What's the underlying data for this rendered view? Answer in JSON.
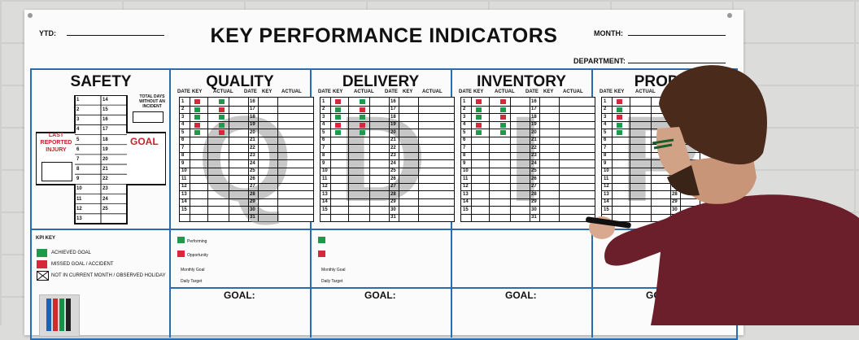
{
  "title": "KEY PERFORMANCE INDICATORS",
  "header": {
    "ytd": "YTD:",
    "month": "MONTH:",
    "department": "DEPARTMENT:"
  },
  "safety": {
    "title": "SAFETY",
    "total_days": "TOTAL DAYS WITHOUT AN INCIDENT",
    "last_injury": "LAST REPORTED INJURY",
    "goal": "GOAL",
    "left_nums": [
      "1",
      "2",
      "3",
      "4",
      "5",
      "6",
      "7",
      "8",
      "9",
      "10",
      "11",
      "12",
      "13"
    ],
    "right_nums": [
      "14",
      "15",
      "16",
      "17",
      "18",
      "19",
      "20",
      "21",
      "22",
      "23",
      "24",
      "25"
    ]
  },
  "sections": [
    {
      "title": "QUALITY",
      "letter": "Q"
    },
    {
      "title": "DELIVERY",
      "letter": "D"
    },
    {
      "title": "INVENTORY",
      "letter": "I"
    },
    {
      "title": "PRODU",
      "letter": "P"
    }
  ],
  "col_headers": {
    "date": "DATE",
    "key": "KEY",
    "actual": "ACTUAL"
  },
  "rows_left": [
    "1",
    "2",
    "3",
    "4",
    "5",
    "6",
    "7",
    "8",
    "9",
    "10",
    "11",
    "12",
    "13",
    "14",
    "15"
  ],
  "rows_right": [
    "16",
    "17",
    "18",
    "19",
    "20",
    "21",
    "22",
    "23",
    "24",
    "25",
    "26",
    "27",
    "28",
    "29",
    "30",
    "31"
  ],
  "kpi_key": {
    "title": "KPI KEY",
    "achieved": "ACHIEVED GOAL",
    "missed": "MISSED GOAL / ACCIDENT",
    "not_current": "NOT IN CURRENT MONTH / OBSERVED HOLIDAY"
  },
  "legend_small": {
    "performing": "Performing",
    "opportunity": "Opportunity",
    "monthly": "Monthly Goal",
    "daily": "Daily Target"
  },
  "goal_label": "GOAL:",
  "colors": {
    "green": "#1f9a4a",
    "red": "#d6283a",
    "blue": "#2a6cb0",
    "safety_red": "#c8202c"
  },
  "marks": {
    "quality": [
      [
        "r",
        "g"
      ],
      [
        "g",
        "r"
      ],
      [
        "g",
        "g"
      ],
      [
        "r",
        "g"
      ],
      [
        "g",
        "r"
      ],
      [
        "",
        ""
      ]
    ],
    "delivery": [
      [
        "r",
        "g"
      ],
      [
        "g",
        "r"
      ],
      [
        "g",
        "g"
      ],
      [
        "r",
        "r"
      ],
      [
        "g",
        "g"
      ],
      [
        "",
        ""
      ]
    ],
    "inventory": [
      [
        "r",
        "r"
      ],
      [
        "g",
        "g"
      ],
      [
        "g",
        "r"
      ],
      [
        "r",
        "g"
      ],
      [
        "g",
        "g"
      ],
      [
        "",
        ""
      ]
    ],
    "production": [
      [
        "r",
        ""
      ],
      [
        "g",
        ""
      ],
      [
        "r",
        ""
      ],
      [
        "g",
        ""
      ],
      [
        "g",
        ""
      ],
      [
        "",
        ""
      ]
    ]
  }
}
